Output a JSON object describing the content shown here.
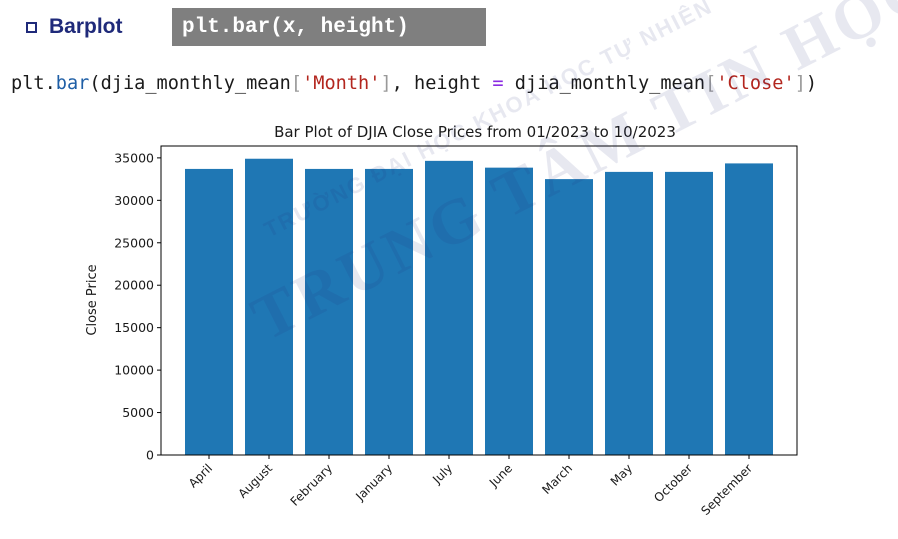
{
  "header": {
    "section_title": "Barplot",
    "code_badge": "plt.bar(x, height)"
  },
  "code": {
    "t1": "plt.",
    "t2": "bar",
    "t3": "(djia_monthly_mean",
    "t4": "[",
    "t5": "'Month'",
    "t6": "]",
    "t7": ", height ",
    "t8": "=",
    "t9": " djia_monthly_mean",
    "t10": "[",
    "t11": "'Close'",
    "t12": "]",
    "t13": ")"
  },
  "watermark": {
    "line1": "TRƯỜNG ĐẠI HỌC KHOA HỌC TỰ NHIÊN",
    "line2": "TRUNG TÂM TIN HỌC"
  },
  "colors": {
    "bar": "#1f77b4",
    "heading": "#1f2a7a"
  },
  "chart_data": {
    "type": "bar",
    "title": "Bar Plot of DJIA Close Prices from 01/2023 to 10/2023",
    "xlabel": "",
    "ylabel": "Close Price",
    "categories": [
      "April",
      "August",
      "February",
      "January",
      "July",
      "June",
      "March",
      "May",
      "October",
      "September"
    ],
    "values": [
      33700,
      34900,
      33700,
      33700,
      34650,
      33850,
      32500,
      33350,
      33350,
      34350
    ],
    "ylim": [
      0,
      36400
    ],
    "yticks": [
      0,
      5000,
      10000,
      15000,
      20000,
      25000,
      30000,
      35000
    ],
    "grid": false
  }
}
